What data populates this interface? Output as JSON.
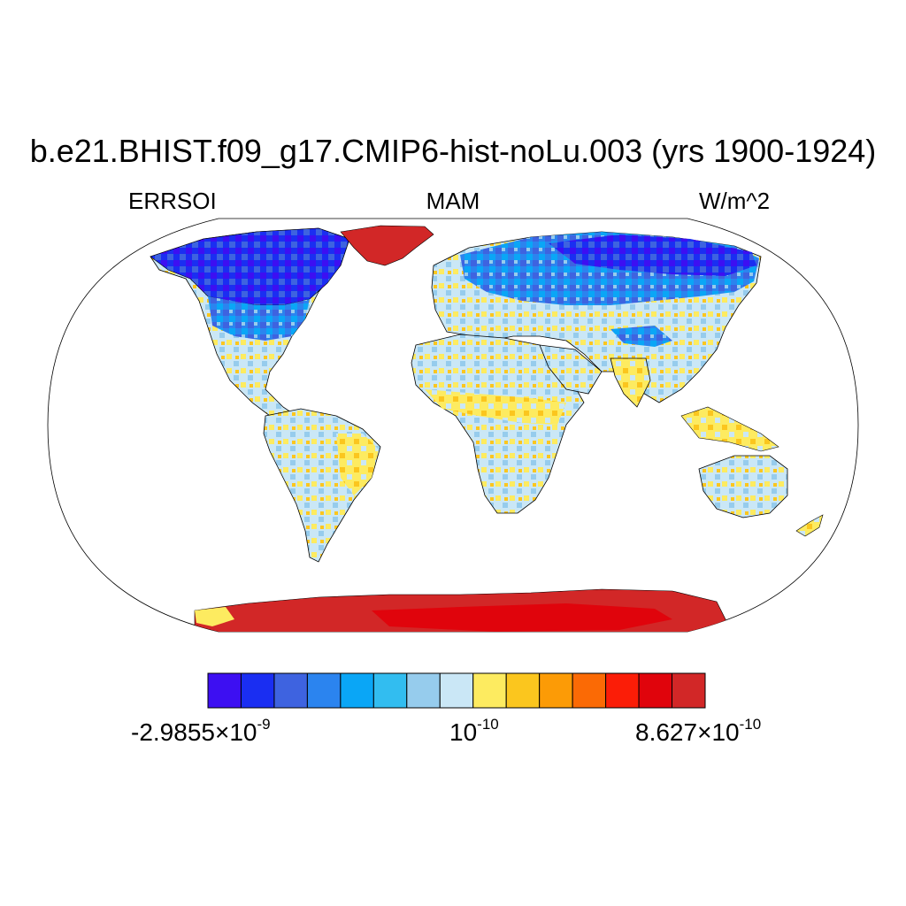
{
  "header": {
    "title": "b.e21.BHIST.f09_g17.CMIP6-hist-noLu.003 (yrs 1900-1924)",
    "variable": "ERRSOI",
    "season": "MAM",
    "units": "W/m^2"
  },
  "colorbar": {
    "colors": [
      "#3d0ff2",
      "#1a2ef2",
      "#3e63e0",
      "#2b84ef",
      "#0aa6f6",
      "#32bdf0",
      "#96cced",
      "#cae7f6",
      "#fdeb60",
      "#fbc61e",
      "#fc9b06",
      "#fb6a05",
      "#fb1d07",
      "#e0040c",
      "#d22727"
    ],
    "labels": {
      "min_mantissa": "-2.9855",
      "min_exponent": "-9",
      "mid_base": "10",
      "mid_exponent": "-10",
      "max_mantissa": "8.627",
      "max_exponent": "-10"
    },
    "times_symbol": "×"
  },
  "chart_data": {
    "type": "heatmap",
    "title": "b.e21.BHIST.f09_g17.CMIP6-hist-noLu.003 (yrs 1900-1924)",
    "variable": "ERRSOI",
    "season": "MAM",
    "units": "W/m^2",
    "projection": "Robinson, global",
    "color_scale_range": [
      -2.9855e-09,
      8.627e-10
    ],
    "color_levels": 15,
    "regions": [
      {
        "region": "Canada / Alaska",
        "level": "strong negative (deep blue)"
      },
      {
        "region": "Northern Eurasia / Siberia",
        "level": "strong negative (blue)"
      },
      {
        "region": "Tibetan Plateau",
        "level": "negative (blue)"
      },
      {
        "region": "Greenland",
        "level": "strong positive (red)"
      },
      {
        "region": "Antarctica",
        "level": "strong positive (red)"
      },
      {
        "region": "Tropics / mid-latitudes",
        "level": "near zero (light blue to yellow)"
      }
    ]
  }
}
